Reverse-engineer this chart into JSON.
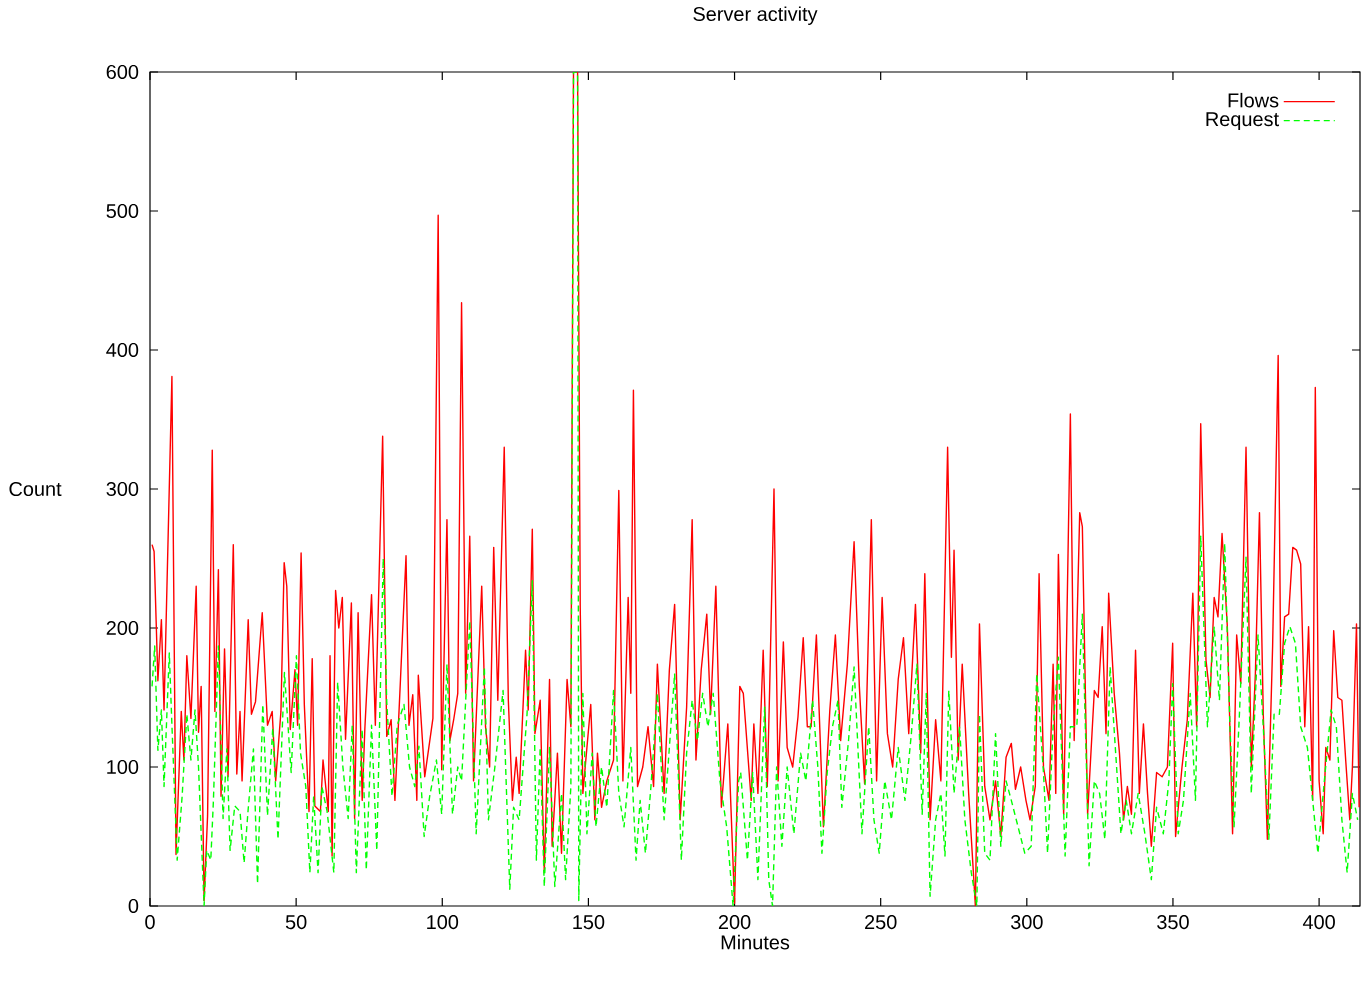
{
  "chart_data": {
    "type": "line",
    "title": "Server activity",
    "xlabel": "Minutes",
    "ylabel": "Count",
    "xlim": [
      0,
      414
    ],
    "ylim": [
      0,
      600
    ],
    "xticks": [
      0,
      50,
      100,
      150,
      200,
      250,
      300,
      350,
      400
    ],
    "yticks": [
      0,
      100,
      200,
      300,
      400,
      500,
      600
    ],
    "legend": "top right",
    "marker": "none",
    "series": [
      {
        "name": "Flows",
        "color": "#ff0000",
        "line_style": "solid",
        "x": [
          0.7,
          1.4,
          2.7,
          3.9,
          4.8,
          7.5,
          8.9,
          10.7,
          11.6,
          12.6,
          14,
          15.8,
          16.6,
          17.5,
          18.5,
          19.7,
          21.3,
          22.2,
          23.4,
          24.3,
          25.5,
          26.7,
          28.5,
          29.7,
          30.8,
          31.5,
          33.6,
          34.7,
          36.1,
          38.4,
          40.2,
          41.8,
          43,
          44.8,
          45.9,
          46.8,
          48,
          49.6,
          50.5,
          51.7,
          52.8,
          54.4,
          55.5,
          56.4,
          58.3,
          59.2,
          61,
          61.6,
          62.3,
          63.5,
          64.6,
          65.8,
          66.9,
          68.9,
          70,
          71.2,
          72.6,
          73.5,
          75.8,
          77.1,
          79.6,
          81,
          82.5,
          83.8,
          85.7,
          87.6,
          88.6,
          89.9,
          91.3,
          91.8,
          94,
          96.8,
          98.6,
          99.8,
          101.6,
          102.6,
          103.9,
          105.3,
          106.6,
          108,
          109.4,
          110.7,
          113.5,
          114.8,
          116.2,
          117.6,
          119,
          121.2,
          122.6,
          124,
          125.3,
          126.3,
          128.5,
          129.4,
          130.8,
          131.7,
          133.5,
          134.9,
          136.7,
          137.6,
          139.4,
          140.8,
          142.7,
          144,
          144.9,
          146.3,
          147.2,
          148.1,
          150.8,
          152.2,
          153.1,
          154.5,
          156.3,
          158.6,
          160.4,
          161.8,
          163.6,
          164.5,
          165.4,
          166.8,
          168.6,
          170.4,
          172.3,
          173.6,
          175.9,
          177.7,
          179.5,
          181.4,
          183.6,
          185.5,
          186.8,
          188.6,
          190.5,
          191.8,
          193.6,
          195.5,
          197.7,
          200,
          201.8,
          203,
          205.7,
          206.6,
          208,
          209.8,
          211.2,
          212,
          213.5,
          214.9,
          216.7,
          218,
          219.9,
          221.7,
          223.5,
          224.9,
          226.2,
          228,
          230.4,
          232.6,
          234.5,
          236.3,
          238.6,
          240.9,
          242.7,
          244.5,
          246.8,
          248.6,
          250.5,
          252.3,
          254.1,
          256,
          257.8,
          259.6,
          261.9,
          263.7,
          265.1,
          266.9,
          268.8,
          270.6,
          272.9,
          274.2,
          275.1,
          276.5,
          277.9,
          280.1,
          282.4,
          283.8,
          285.6,
          287.4,
          289.3,
          291.1,
          292.9,
          294.7,
          296.1,
          297.9,
          299.7,
          301.1,
          302.9,
          304.2,
          305.7,
          307.6,
          309,
          309.9,
          310.8,
          312.6,
          314.9,
          316.2,
          318.1,
          319,
          320.8,
          323.1,
          324.4,
          325.8,
          327.1,
          328,
          329.9,
          331.7,
          333.1,
          334.4,
          335.8,
          337.2,
          338.5,
          339.9,
          341.3,
          342.6,
          344.4,
          346.3,
          348.1,
          349.9,
          350.9,
          353.1,
          354.9,
          356.8,
          358.1,
          359.5,
          361.3,
          362.7,
          364.1,
          365.4,
          366.8,
          368.6,
          370.4,
          371.8,
          373.2,
          375,
          376.8,
          378.2,
          379.6,
          380.9,
          382.3,
          384.1,
          386,
          386.9,
          388.2,
          389.6,
          391,
          392.3,
          393.7,
          395.1,
          396.4,
          397.8,
          398.7,
          400,
          401.4,
          402.3,
          403.7,
          405,
          406.4,
          407.8,
          409.1,
          410.5,
          411.4,
          412.8,
          413.7
        ],
        "values": [
          260,
          255,
          162,
          206,
          141,
          381,
          37,
          140,
          105,
          180,
          135,
          230,
          125,
          158,
          4,
          65,
          328,
          140,
          242,
          79,
          185,
          93,
          260,
          95,
          140,
          90,
          206,
          138,
          147,
          211,
          130,
          140,
          90,
          140,
          247,
          230,
          127,
          170,
          130,
          254,
          145,
          68,
          178,
          72,
          68,
          105,
          68,
          180,
          36,
          227,
          200,
          222,
          120,
          218,
          63,
          211,
          76,
          127,
          224,
          130,
          338,
          122,
          134,
          76,
          163,
          252,
          130,
          152,
          76,
          166,
          93,
          135,
          497,
          98,
          278,
          119,
          134,
          153,
          434,
          153,
          266,
          90,
          230,
          129,
          100,
          258,
          148,
          330,
          148,
          76,
          107,
          81,
          184,
          141,
          271,
          124,
          148,
          24,
          163,
          43,
          110,
          38,
          163,
          129,
          600,
          600,
          215,
          81,
          145,
          62,
          110,
          71,
          90,
          105,
          299,
          90,
          222,
          153,
          371,
          86,
          100,
          129,
          86,
          174,
          81,
          170,
          217,
          62,
          143,
          278,
          105,
          170,
          210,
          138,
          230,
          71,
          131,
          2,
          158,
          153,
          76,
          131,
          81,
          184,
          86,
          155,
          300,
          90,
          190,
          114,
          100,
          136,
          193,
          129,
          129,
          195,
          57,
          141,
          195,
          119,
          174,
          262,
          158,
          88,
          278,
          90,
          222,
          124,
          100,
          163,
          193,
          124,
          217,
          110,
          239,
          62,
          134,
          90,
          330,
          179,
          256,
          105,
          174,
          81,
          0,
          203,
          86,
          62,
          90,
          50,
          107,
          117,
          84,
          100,
          76,
          62,
          86,
          239,
          100,
          76,
          174,
          81,
          253,
          66,
          354,
          119,
          283,
          273,
          66,
          155,
          150,
          201,
          124,
          225,
          153,
          110,
          62,
          86,
          66,
          184,
          81,
          131,
          81,
          43,
          96,
          93,
          100,
          189,
          50,
          100,
          134,
          225,
          129,
          347,
          177,
          150,
          222,
          208,
          268,
          201,
          52,
          195,
          160,
          330,
          100,
          167,
          283,
          138,
          48,
          187,
          396,
          158,
          208,
          210,
          258,
          256,
          246,
          129,
          201,
          76,
          373,
          90,
          52,
          114,
          105,
          198,
          150,
          148,
          105,
          62,
          100,
          203,
          71
        ]
      },
      {
        "name": "Request",
        "color": "#00ff00",
        "line_style": "dashed",
        "x": [
          0.7,
          1.6,
          2.7,
          3.9,
          4.8,
          6.6,
          7.5,
          9.3,
          11,
          12.6,
          14,
          15.4,
          16.6,
          18.5,
          19.4,
          20.8,
          21.7,
          23.4,
          25,
          26.3,
          27.4,
          29,
          30.8,
          32.2,
          33.6,
          35.4,
          36.8,
          38.6,
          40.2,
          42,
          43.8,
          46,
          48.3,
          50.1,
          51.5,
          53.3,
          54.7,
          56,
          57.5,
          58.8,
          60.6,
          62.9,
          64.2,
          66,
          67.8,
          69.2,
          70.6,
          72.6,
          74,
          75.8,
          77.6,
          79.8,
          81,
          82.8,
          84.6,
          86.9,
          88.8,
          90.6,
          92,
          93.8,
          95.7,
          98,
          99.8,
          101.6,
          103.5,
          105.3,
          106.6,
          109.4,
          111.6,
          114.4,
          115.8,
          118,
          120.8,
          123.1,
          124.4,
          126.3,
          129,
          130.8,
          132.2,
          133.5,
          134.9,
          136.7,
          138.5,
          140.8,
          142.2,
          144,
          144.9,
          146.3,
          146.7,
          148.1,
          149.5,
          151.3,
          152.6,
          154.5,
          156.3,
          158.6,
          160.4,
          162.2,
          164.5,
          166.3,
          167.7,
          169.5,
          171.4,
          173.6,
          175.9,
          177.7,
          179.5,
          181.8,
          183.6,
          185.5,
          187.3,
          189.1,
          190.9,
          192.7,
          195,
          197.3,
          199.5,
          201.4,
          202.1,
          204.4,
          206.2,
          208,
          210.3,
          211.7,
          213,
          214.4,
          216.2,
          218,
          220.3,
          222.6,
          224.4,
          226.7,
          228.5,
          229.9,
          231.7,
          233.5,
          235.4,
          236.7,
          239,
          240.9,
          243.6,
          245.9,
          247.7,
          249.5,
          251.4,
          253.7,
          256,
          258.3,
          260.5,
          262.4,
          264.2,
          265.6,
          266.9,
          268.8,
          270.6,
          272,
          273.3,
          275.1,
          277,
          278.8,
          281,
          282.9,
          283.8,
          285.6,
          287.4,
          289.3,
          291.1,
          292.9,
          294.7,
          297,
          299.3,
          301.5,
          303.4,
          305.7,
          307.1,
          309,
          310.8,
          313.1,
          314.9,
          317.1,
          319,
          321.3,
          323.1,
          324.9,
          326.7,
          328.5,
          330.4,
          332.2,
          334,
          335.8,
          338.1,
          340.4,
          342.6,
          344.4,
          346.7,
          348.6,
          349.9,
          351.8,
          353.6,
          355.9,
          357.7,
          359.5,
          361.8,
          364.1,
          365.9,
          367.7,
          369.5,
          370.9,
          372.7,
          375,
          376.8,
          379.1,
          380.9,
          382.8,
          384.6,
          386.4,
          388.2,
          390,
          391.9,
          393.7,
          396,
          397.8,
          399.6,
          401.8,
          404.1,
          405.9,
          407.8,
          409.6,
          411.4,
          413.2
        ],
        "values": [
          158,
          187,
          112,
          141,
          86,
          182,
          130,
          33,
          79,
          138,
          105,
          141,
          100,
          0,
          40,
          33,
          76,
          187,
          63,
          113,
          40,
          72,
          68,
          31,
          70,
          113,
          16,
          145,
          65,
          128,
          48,
          168,
          96,
          180,
          110,
          86,
          24,
          79,
          24,
          86,
          68,
          24,
          161,
          100,
          63,
          130,
          24,
          127,
          26,
          130,
          40,
          250,
          147,
          79,
          130,
          145,
          100,
          86,
          115,
          50,
          79,
          105,
          66,
          174,
          66,
          100,
          90,
          205,
          52,
          172,
          62,
          100,
          155,
          12,
          71,
          62,
          138,
          234,
          33,
          114,
          14,
          114,
          14,
          81,
          19,
          86,
          600,
          600,
          4,
          153,
          52,
          110,
          57,
          100,
          71,
          155,
          81,
          57,
          114,
          33,
          76,
          38,
          86,
          153,
          62,
          114,
          167,
          33,
          110,
          148,
          119,
          153,
          129,
          153,
          90,
          57,
          0,
          90,
          96,
          33,
          96,
          19,
          143,
          19,
          0,
          100,
          43,
          100,
          52,
          110,
          90,
          148,
          100,
          38,
          96,
          129,
          148,
          71,
          119,
          172,
          52,
          129,
          62,
          38,
          90,
          62,
          114,
          76,
          124,
          174,
          66,
          153,
          7,
          62,
          81,
          36,
          155,
          81,
          129,
          62,
          24,
          0,
          138,
          38,
          33,
          124,
          43,
          90,
          76,
          57,
          38,
          43,
          167,
          96,
          38,
          129,
          179,
          36,
          129,
          129,
          210,
          29,
          90,
          81,
          48,
          172,
          110,
          52,
          76,
          52,
          81,
          52,
          19,
          71,
          52,
          90,
          160,
          52,
          76,
          153,
          76,
          266,
          129,
          201,
          148,
          261,
          129,
          57,
          136,
          251,
          81,
          195,
          129,
          48,
          138,
          138,
          189,
          201,
          189,
          129,
          114,
          76,
          38,
          90,
          141,
          129,
          62,
          24,
          81,
          62
        ]
      }
    ]
  }
}
